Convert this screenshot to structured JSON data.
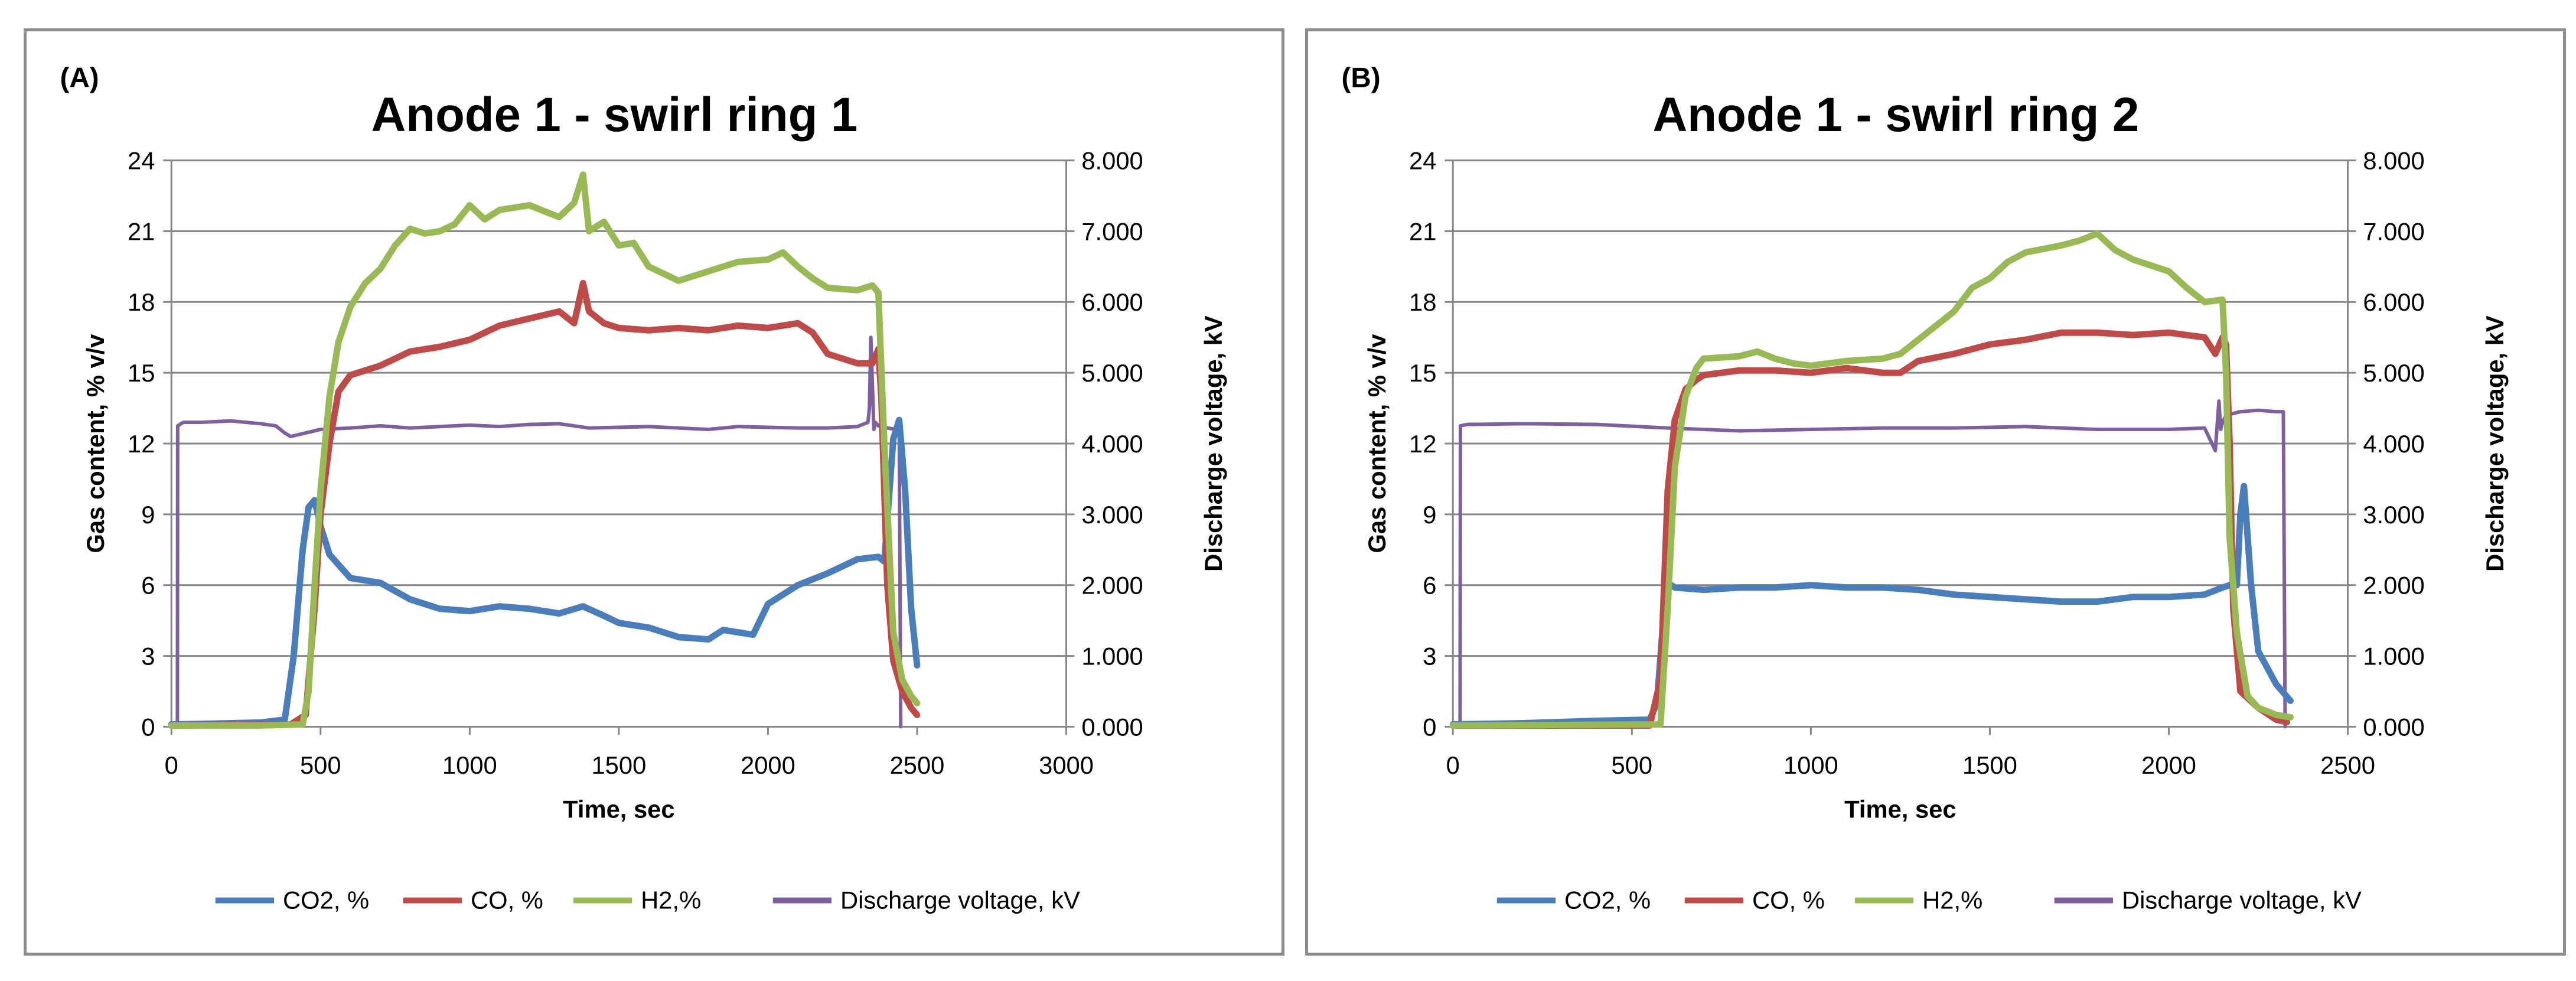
{
  "chart_data": [
    {
      "type": "line",
      "panel_label": "(A)",
      "title": "Anode 1 - swirl ring 1",
      "xlabel": "Time, sec",
      "ylabel": "Gas content, % v/v",
      "y2label": "Discharge voltage, kV",
      "xlim": [
        0,
        3000
      ],
      "ylim": [
        0,
        24
      ],
      "y2lim": [
        0,
        8
      ],
      "xticks": [
        "0",
        "500",
        "1000",
        "1500",
        "2000",
        "2500",
        "3000"
      ],
      "yticks": [
        "0",
        "3",
        "6",
        "9",
        "12",
        "15",
        "18",
        "21",
        "24"
      ],
      "y2ticks": [
        "0.000",
        "1.000",
        "2.000",
        "3.000",
        "4.000",
        "5.000",
        "6.000",
        "7.000",
        "8.000"
      ],
      "grid": "horizontal",
      "legend": "bottom",
      "series": [
        {
          "name": "CO2, %",
          "color": "#4a7ebb",
          "axis": "left",
          "x": [
            0,
            100,
            200,
            300,
            380,
            410,
            440,
            460,
            480,
            500,
            530,
            600,
            700,
            800,
            900,
            1000,
            1100,
            1200,
            1300,
            1380,
            1450,
            1500,
            1600,
            1700,
            1800,
            1850,
            1950,
            2000,
            2100,
            2200,
            2300,
            2370,
            2390,
            2420,
            2440,
            2460,
            2480,
            2500
          ],
          "y": [
            0.1,
            0.12,
            0.15,
            0.18,
            0.3,
            3,
            7.5,
            9.3,
            9.6,
            8.5,
            7.3,
            6.3,
            6.1,
            5.4,
            5.0,
            4.9,
            5.1,
            5.0,
            4.8,
            5.1,
            4.7,
            4.4,
            4.2,
            3.8,
            3.7,
            4.1,
            3.9,
            5.2,
            6.0,
            6.5,
            7.1,
            7.2,
            7.0,
            12.2,
            13.0,
            10,
            5,
            2.6
          ]
        },
        {
          "name": "CO, %",
          "color": "#be4b48",
          "axis": "left",
          "x": [
            0,
            300,
            400,
            450,
            480,
            500,
            530,
            560,
            600,
            700,
            800,
            900,
            1000,
            1100,
            1200,
            1300,
            1350,
            1380,
            1400,
            1450,
            1500,
            1600,
            1700,
            1800,
            1900,
            2000,
            2100,
            2150,
            2200,
            2300,
            2350,
            2370,
            2380,
            2400,
            2420,
            2450,
            2480,
            2500
          ],
          "y": [
            0.05,
            0.08,
            0.1,
            0.5,
            5,
            9,
            12,
            14.2,
            14.9,
            15.3,
            15.9,
            16.1,
            16.4,
            17.0,
            17.3,
            17.6,
            17.1,
            18.8,
            17.6,
            17.1,
            16.9,
            16.8,
            16.9,
            16.8,
            17.0,
            16.9,
            17.1,
            16.7,
            15.8,
            15.4,
            15.4,
            16.0,
            14,
            6,
            2.8,
            1.5,
            0.8,
            0.5
          ]
        },
        {
          "name": "H2,%",
          "color": "#98b954",
          "axis": "left",
          "x": [
            0,
            300,
            440,
            460,
            480,
            500,
            530,
            560,
            600,
            650,
            700,
            750,
            800,
            850,
            900,
            950,
            1000,
            1050,
            1100,
            1200,
            1300,
            1350,
            1380,
            1400,
            1450,
            1500,
            1550,
            1600,
            1650,
            1700,
            1800,
            1850,
            1900,
            2000,
            2050,
            2100,
            2150,
            2200,
            2300,
            2350,
            2370,
            2390,
            2420,
            2450,
            2480,
            2500
          ],
          "y": [
            0.05,
            0.05,
            0.1,
            1.5,
            6,
            10,
            14,
            16.3,
            17.8,
            18.8,
            19.4,
            20.4,
            21.1,
            20.9,
            21.0,
            21.3,
            22.1,
            21.5,
            21.9,
            22.1,
            21.6,
            22.2,
            23.4,
            21.0,
            21.4,
            20.4,
            20.5,
            19.5,
            19.2,
            18.9,
            19.3,
            19.5,
            19.7,
            19.8,
            20.1,
            19.5,
            19.0,
            18.6,
            18.5,
            18.7,
            18.4,
            12,
            4,
            2.0,
            1.3,
            1.0
          ]
        },
        {
          "name": "Discharge voltage, kV",
          "color": "#7d60a0",
          "axis": "right",
          "x": [
            0,
            20,
            21,
            40,
            100,
            200,
            300,
            350,
            380,
            400,
            450,
            500,
            600,
            700,
            800,
            900,
            1000,
            1100,
            1200,
            1300,
            1400,
            1500,
            1600,
            1700,
            1800,
            1900,
            2000,
            2100,
            2200,
            2300,
            2335,
            2340,
            2345,
            2355,
            2360,
            2370,
            2400,
            2430,
            2440,
            2445
          ],
          "y": [
            0.0,
            0.0,
            4.25,
            4.3,
            4.3,
            4.32,
            4.28,
            4.25,
            4.15,
            4.1,
            4.15,
            4.2,
            4.22,
            4.25,
            4.22,
            4.24,
            4.26,
            4.24,
            4.27,
            4.28,
            4.22,
            4.23,
            4.24,
            4.22,
            4.2,
            4.24,
            4.23,
            4.22,
            4.22,
            4.24,
            4.3,
            4.5,
            5.5,
            4.2,
            4.3,
            4.25,
            4.22,
            4.2,
            4.22,
            0.0
          ]
        }
      ]
    },
    {
      "type": "line",
      "panel_label": "(B)",
      "title": "Anode 1 - swirl ring 2",
      "xlabel": "Time, sec",
      "ylabel": "Gas content, % v/v",
      "y2label": "Discharge voltage, kV",
      "xlim": [
        0,
        2500
      ],
      "ylim": [
        0,
        24
      ],
      "y2lim": [
        0,
        8
      ],
      "xticks": [
        "0",
        "500",
        "1000",
        "1500",
        "2000",
        "2500"
      ],
      "yticks": [
        "0",
        "3",
        "6",
        "9",
        "12",
        "15",
        "18",
        "21",
        "24"
      ],
      "y2ticks": [
        "0.000",
        "1.000",
        "2.000",
        "3.000",
        "4.000",
        "5.000",
        "6.000",
        "7.000",
        "8.000"
      ],
      "grid": "horizontal",
      "legend": "bottom",
      "series": [
        {
          "name": "CO2, %",
          "color": "#4a7ebb",
          "axis": "left",
          "x": [
            0,
            200,
            400,
            550,
            570,
            590,
            600,
            620,
            700,
            800,
            900,
            1000,
            1100,
            1200,
            1300,
            1400,
            1500,
            1600,
            1700,
            1800,
            1900,
            2000,
            2100,
            2150,
            2170,
            2190,
            2200,
            2210,
            2230,
            2250,
            2300,
            2340
          ],
          "y": [
            0.1,
            0.15,
            0.25,
            0.3,
            1,
            5,
            6.1,
            5.9,
            5.8,
            5.9,
            5.9,
            6.0,
            5.9,
            5.9,
            5.8,
            5.6,
            5.5,
            5.4,
            5.3,
            5.3,
            5.5,
            5.5,
            5.6,
            5.9,
            6.0,
            6.0,
            9,
            10.2,
            6,
            3.2,
            1.8,
            1.1
          ]
        },
        {
          "name": "CO, %",
          "color": "#be4b48",
          "axis": "left",
          "x": [
            0,
            550,
            580,
            600,
            620,
            650,
            680,
            700,
            750,
            800,
            900,
            1000,
            1100,
            1200,
            1250,
            1300,
            1400,
            1500,
            1600,
            1700,
            1800,
            1900,
            2000,
            2100,
            2130,
            2150,
            2160,
            2170,
            2180,
            2200,
            2250,
            2300,
            2330
          ],
          "y": [
            0.05,
            0.05,
            2,
            10,
            13,
            14.3,
            14.7,
            14.9,
            15.0,
            15.1,
            15.1,
            15.0,
            15.2,
            15.0,
            15.0,
            15.5,
            15.8,
            16.2,
            16.4,
            16.7,
            16.7,
            16.6,
            16.7,
            16.5,
            15.8,
            16.5,
            16.2,
            12,
            5,
            1.5,
            0.8,
            0.3,
            0.2
          ]
        },
        {
          "name": "H2,%",
          "color": "#98b954",
          "axis": "left",
          "x": [
            0,
            580,
            600,
            620,
            650,
            680,
            700,
            800,
            850,
            900,
            950,
            1000,
            1100,
            1200,
            1250,
            1300,
            1400,
            1450,
            1500,
            1550,
            1600,
            1700,
            1750,
            1800,
            1850,
            1900,
            2000,
            2050,
            2100,
            2150,
            2160,
            2170,
            2190,
            2220,
            2250,
            2300,
            2340
          ],
          "y": [
            0.05,
            0.1,
            5,
            11,
            14,
            15.2,
            15.6,
            15.7,
            15.9,
            15.6,
            15.4,
            15.3,
            15.5,
            15.6,
            15.8,
            16.4,
            17.6,
            18.6,
            19.0,
            19.7,
            20.1,
            20.4,
            20.6,
            20.9,
            20.2,
            19.8,
            19.3,
            18.6,
            18.0,
            18.1,
            15,
            8,
            4,
            1.3,
            0.8,
            0.5,
            0.4
          ]
        },
        {
          "name": "Discharge voltage, kV",
          "color": "#7d60a0",
          "axis": "right",
          "x": [
            0,
            20,
            21,
            40,
            200,
            400,
            600,
            800,
            1000,
            1200,
            1400,
            1600,
            1800,
            2000,
            2100,
            2130,
            2140,
            2145,
            2150,
            2160,
            2200,
            2250,
            2300,
            2320,
            2325
          ],
          "y": [
            0.0,
            0.0,
            4.25,
            4.27,
            4.28,
            4.27,
            4.22,
            4.18,
            4.2,
            4.22,
            4.22,
            4.24,
            4.2,
            4.2,
            4.22,
            3.9,
            4.6,
            4.2,
            4.3,
            4.4,
            4.45,
            4.47,
            4.45,
            4.45,
            0.0
          ]
        }
      ]
    }
  ]
}
